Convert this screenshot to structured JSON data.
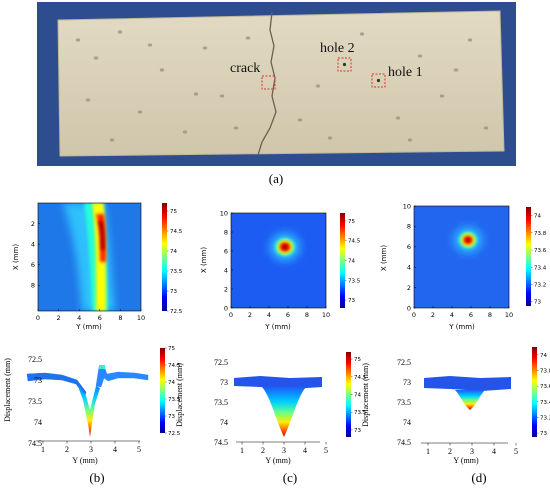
{
  "photo": {
    "labels": {
      "crack": "crack",
      "hole2": "hole 2",
      "hole1": "hole 1"
    }
  },
  "panel_labels": {
    "a": "(a)",
    "b": "(b)",
    "c": "(c)",
    "d": "(d)"
  },
  "maps": [
    {
      "id": "b",
      "xlabel": "Y (mm)",
      "ylabel": "X (mm)",
      "x_ticks": [
        "0",
        "2",
        "4",
        "6",
        "8",
        "10"
      ],
      "y_ticks": [
        "2",
        "4",
        "6",
        "8"
      ],
      "cb_ticks": [
        "75",
        "74.5",
        "74",
        "73.5",
        "73",
        "72.5"
      ],
      "cb_range": [
        72.5,
        75.2
      ]
    },
    {
      "id": "c",
      "xlabel": "Y (mm)",
      "ylabel": "X (mm)",
      "x_ticks": [
        "0",
        "2",
        "4",
        "6",
        "8",
        "10"
      ],
      "y_ticks": [
        "10",
        "8",
        "6",
        "4",
        "2",
        "0"
      ],
      "cb_ticks": [
        "75",
        "74.5",
        "74",
        "73.5",
        "73"
      ],
      "cb_range": [
        72.8,
        75.2
      ]
    },
    {
      "id": "d",
      "xlabel": "Y (mm)",
      "ylabel": "X (mm)",
      "x_ticks": [
        "0",
        "2",
        "4",
        "6",
        "8",
        "10"
      ],
      "y_ticks": [
        "10",
        "8",
        "6",
        "4",
        "2",
        "0"
      ],
      "cb_ticks": [
        "74",
        "73.8",
        "73.6",
        "73.4",
        "73.2",
        "73"
      ],
      "cb_range": [
        72.95,
        74.1
      ]
    }
  ],
  "profiles": [
    {
      "id": "b",
      "xlabel": "Y (mm)",
      "ylabel": "Displacement (mm)",
      "x_ticks": [
        "1",
        "2",
        "3",
        "4",
        "5"
      ],
      "y_ticks": [
        "72.5",
        "73",
        "73.5",
        "74",
        "74.5"
      ],
      "cb_ticks": [
        "75",
        "74.5",
        "74",
        "73.5",
        "73",
        "72.5"
      ]
    },
    {
      "id": "c",
      "xlabel": "Y (mm)",
      "ylabel": "Displacement (mm)",
      "x_ticks": [
        "1",
        "2",
        "3",
        "4",
        "5"
      ],
      "y_ticks": [
        "72.5",
        "73",
        "73.5",
        "74",
        "74.5"
      ],
      "cb_ticks": [
        "75",
        "74.5",
        "74",
        "73.5",
        "73"
      ]
    },
    {
      "id": "d",
      "xlabel": "Y (mm)",
      "ylabel": "Displacement (mm)",
      "x_ticks": [
        "1",
        "2",
        "3",
        "4",
        "5"
      ],
      "y_ticks": [
        "72.5",
        "73",
        "73.5",
        "74",
        "74.5"
      ],
      "cb_ticks": [
        "74",
        "73.8",
        "73.6",
        "73.4",
        "73.2",
        "73"
      ]
    }
  ],
  "colors": {
    "jet_low": "#00008f",
    "jet_high": "#800000",
    "marker": "#e03030",
    "concrete": "#d8cfb6"
  }
}
